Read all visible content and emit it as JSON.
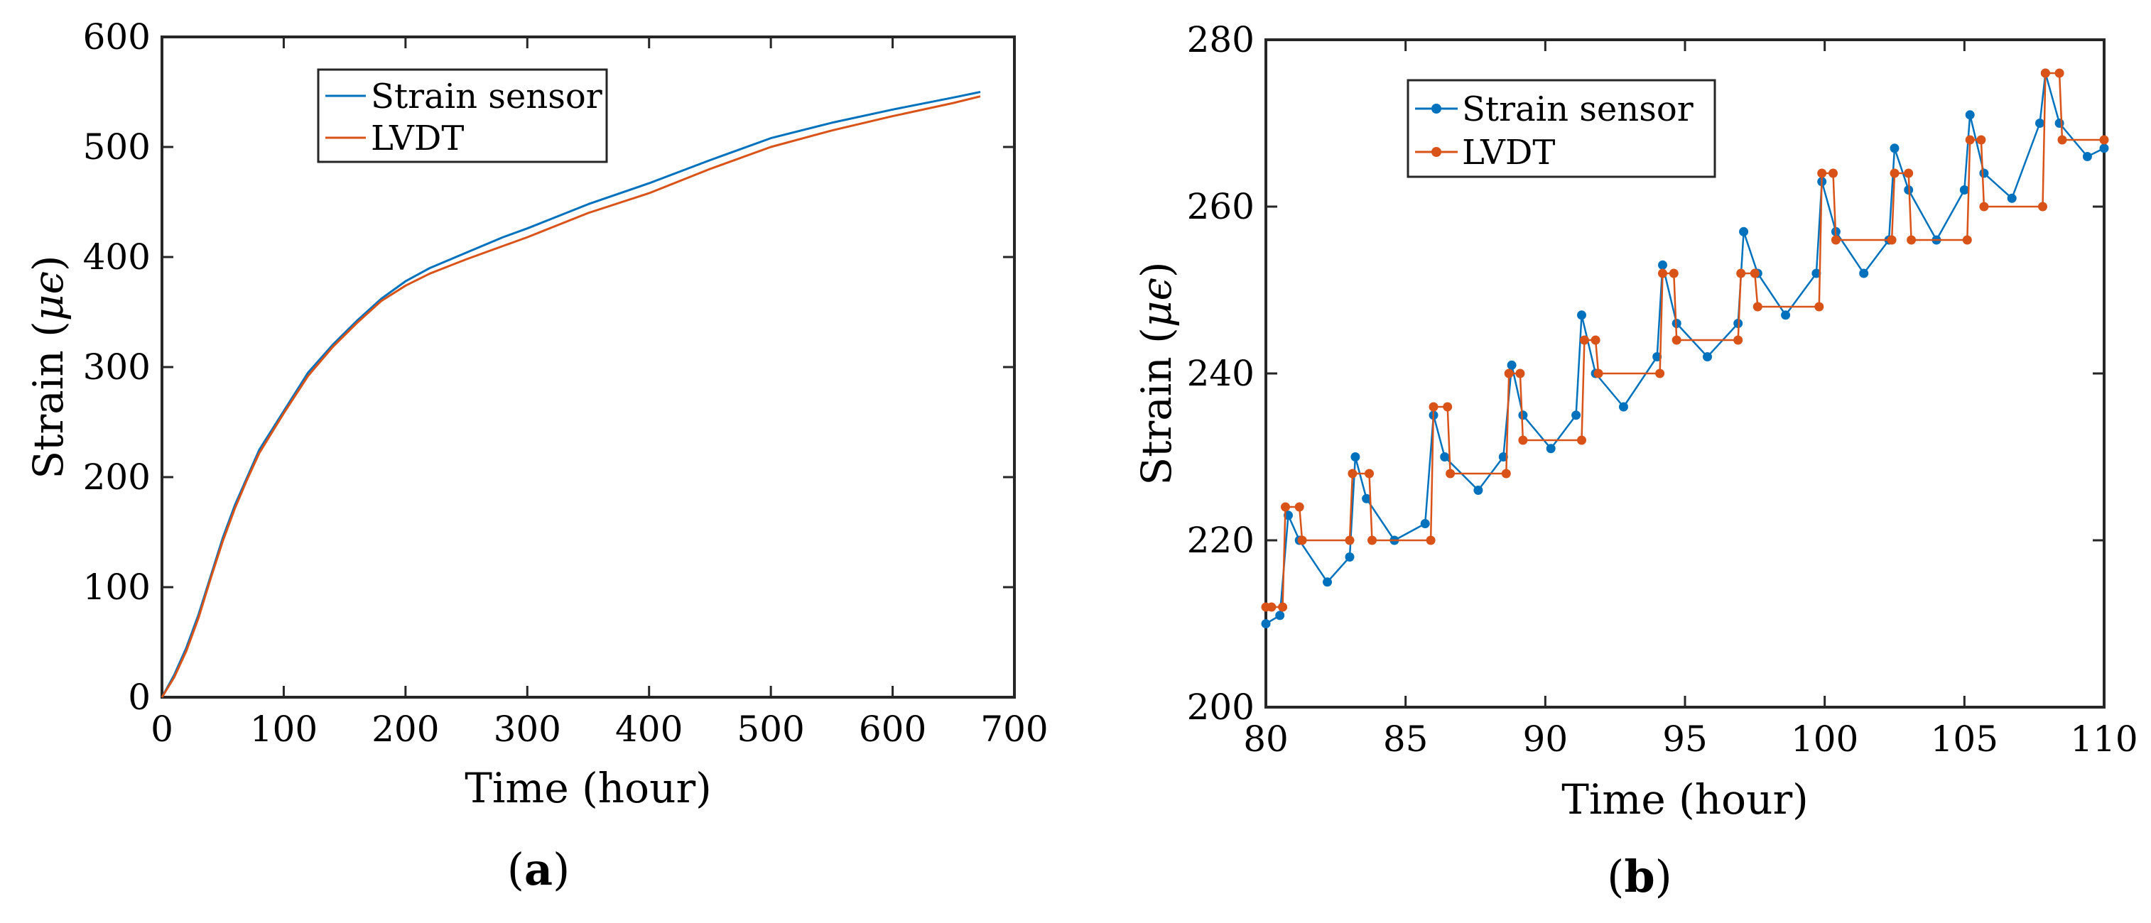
{
  "chart_data": [
    {
      "type": "line",
      "caption_letter": "a",
      "xlabel": "Time (hour)",
      "ylabel_prefix": "Strain (",
      "ylabel_unit": "μϵ",
      "ylabel_suffix": ")",
      "xlim": [
        0,
        700
      ],
      "ylim": [
        0,
        600
      ],
      "xticks": [
        0,
        100,
        200,
        300,
        400,
        500,
        600,
        700
      ],
      "yticks": [
        0,
        100,
        200,
        300,
        400,
        500,
        600
      ],
      "legend_position": "top-center",
      "series": [
        {
          "name": "Strain sensor",
          "color": "#0072BD",
          "marker": "none",
          "x": [
            0,
            10,
            20,
            30,
            40,
            50,
            60,
            70,
            80,
            100,
            120,
            140,
            160,
            180,
            200,
            220,
            250,
            280,
            300,
            350,
            400,
            450,
            500,
            550,
            600,
            650,
            672
          ],
          "y": [
            0,
            20,
            45,
            75,
            110,
            145,
            175,
            200,
            225,
            260,
            295,
            320,
            342,
            362,
            378,
            390,
            404,
            418,
            426,
            448,
            467,
            488,
            508,
            522,
            534,
            545,
            550
          ]
        },
        {
          "name": "LVDT",
          "color": "#D95319",
          "marker": "none",
          "x": [
            0,
            10,
            20,
            30,
            40,
            50,
            60,
            70,
            80,
            100,
            120,
            140,
            160,
            180,
            200,
            220,
            250,
            280,
            300,
            350,
            400,
            450,
            500,
            550,
            600,
            650,
            672
          ],
          "y": [
            0,
            18,
            42,
            72,
            108,
            142,
            172,
            198,
            222,
            258,
            292,
            318,
            340,
            360,
            374,
            385,
            398,
            410,
            418,
            440,
            458,
            480,
            500,
            515,
            528,
            540,
            546
          ]
        }
      ]
    },
    {
      "type": "line",
      "caption_letter": "b",
      "xlabel": "Time (hour)",
      "ylabel_prefix": "Strain (",
      "ylabel_unit": "μϵ",
      "ylabel_suffix": ")",
      "xlim": [
        80,
        110
      ],
      "ylim": [
        200,
        280
      ],
      "xticks": [
        80,
        85,
        90,
        95,
        100,
        105,
        110
      ],
      "yticks": [
        200,
        220,
        240,
        260,
        280
      ],
      "legend_position": "top-left",
      "series": [
        {
          "name": "Strain sensor",
          "color": "#0072BD",
          "marker": "dot",
          "x": [
            80.0,
            80.5,
            80.8,
            81.2,
            82.2,
            83.0,
            83.2,
            83.6,
            84.6,
            85.7,
            86.0,
            86.4,
            87.6,
            88.5,
            88.8,
            89.2,
            90.2,
            91.1,
            91.3,
            91.8,
            92.8,
            94.0,
            94.2,
            94.7,
            95.8,
            96.9,
            97.1,
            97.6,
            98.6,
            99.7,
            99.9,
            100.4,
            101.4,
            102.3,
            102.5,
            103.0,
            104.0,
            105.0,
            105.2,
            105.7,
            106.7,
            107.7,
            107.9,
            108.4,
            109.4,
            110.0
          ],
          "y": [
            210,
            211,
            223,
            220,
            215,
            218,
            230,
            225,
            220,
            222,
            235,
            230,
            226,
            230,
            241,
            235,
            231,
            235,
            247,
            240,
            236,
            242,
            253,
            246,
            242,
            246,
            257,
            252,
            247,
            252,
            263,
            257,
            252,
            256,
            267,
            262,
            256,
            262,
            271,
            264,
            261,
            270,
            276,
            270,
            266,
            267
          ]
        },
        {
          "name": "LVDT",
          "color": "#D95319",
          "marker": "dot",
          "x": [
            80.0,
            80.2,
            80.6,
            80.7,
            81.2,
            81.3,
            83.0,
            83.1,
            83.7,
            83.8,
            85.9,
            86.0,
            86.5,
            86.6,
            88.6,
            88.7,
            89.1,
            89.2,
            91.3,
            91.4,
            91.8,
            91.9,
            94.1,
            94.2,
            94.6,
            94.7,
            96.9,
            97.0,
            97.5,
            97.6,
            99.8,
            99.9,
            100.3,
            100.4,
            102.4,
            102.5,
            103.0,
            103.1,
            105.1,
            105.2,
            105.6,
            105.7,
            107.8,
            107.9,
            108.4,
            108.5,
            110.0
          ],
          "y": [
            212,
            212,
            212,
            224,
            224,
            220,
            220,
            228,
            228,
            220,
            220,
            236,
            236,
            228,
            228,
            240,
            240,
            232,
            232,
            244,
            244,
            240,
            240,
            252,
            252,
            244,
            244,
            252,
            252,
            248,
            248,
            264,
            264,
            256,
            256,
            264,
            264,
            256,
            256,
            268,
            268,
            260,
            260,
            276,
            276,
            268,
            268
          ]
        }
      ]
    }
  ]
}
